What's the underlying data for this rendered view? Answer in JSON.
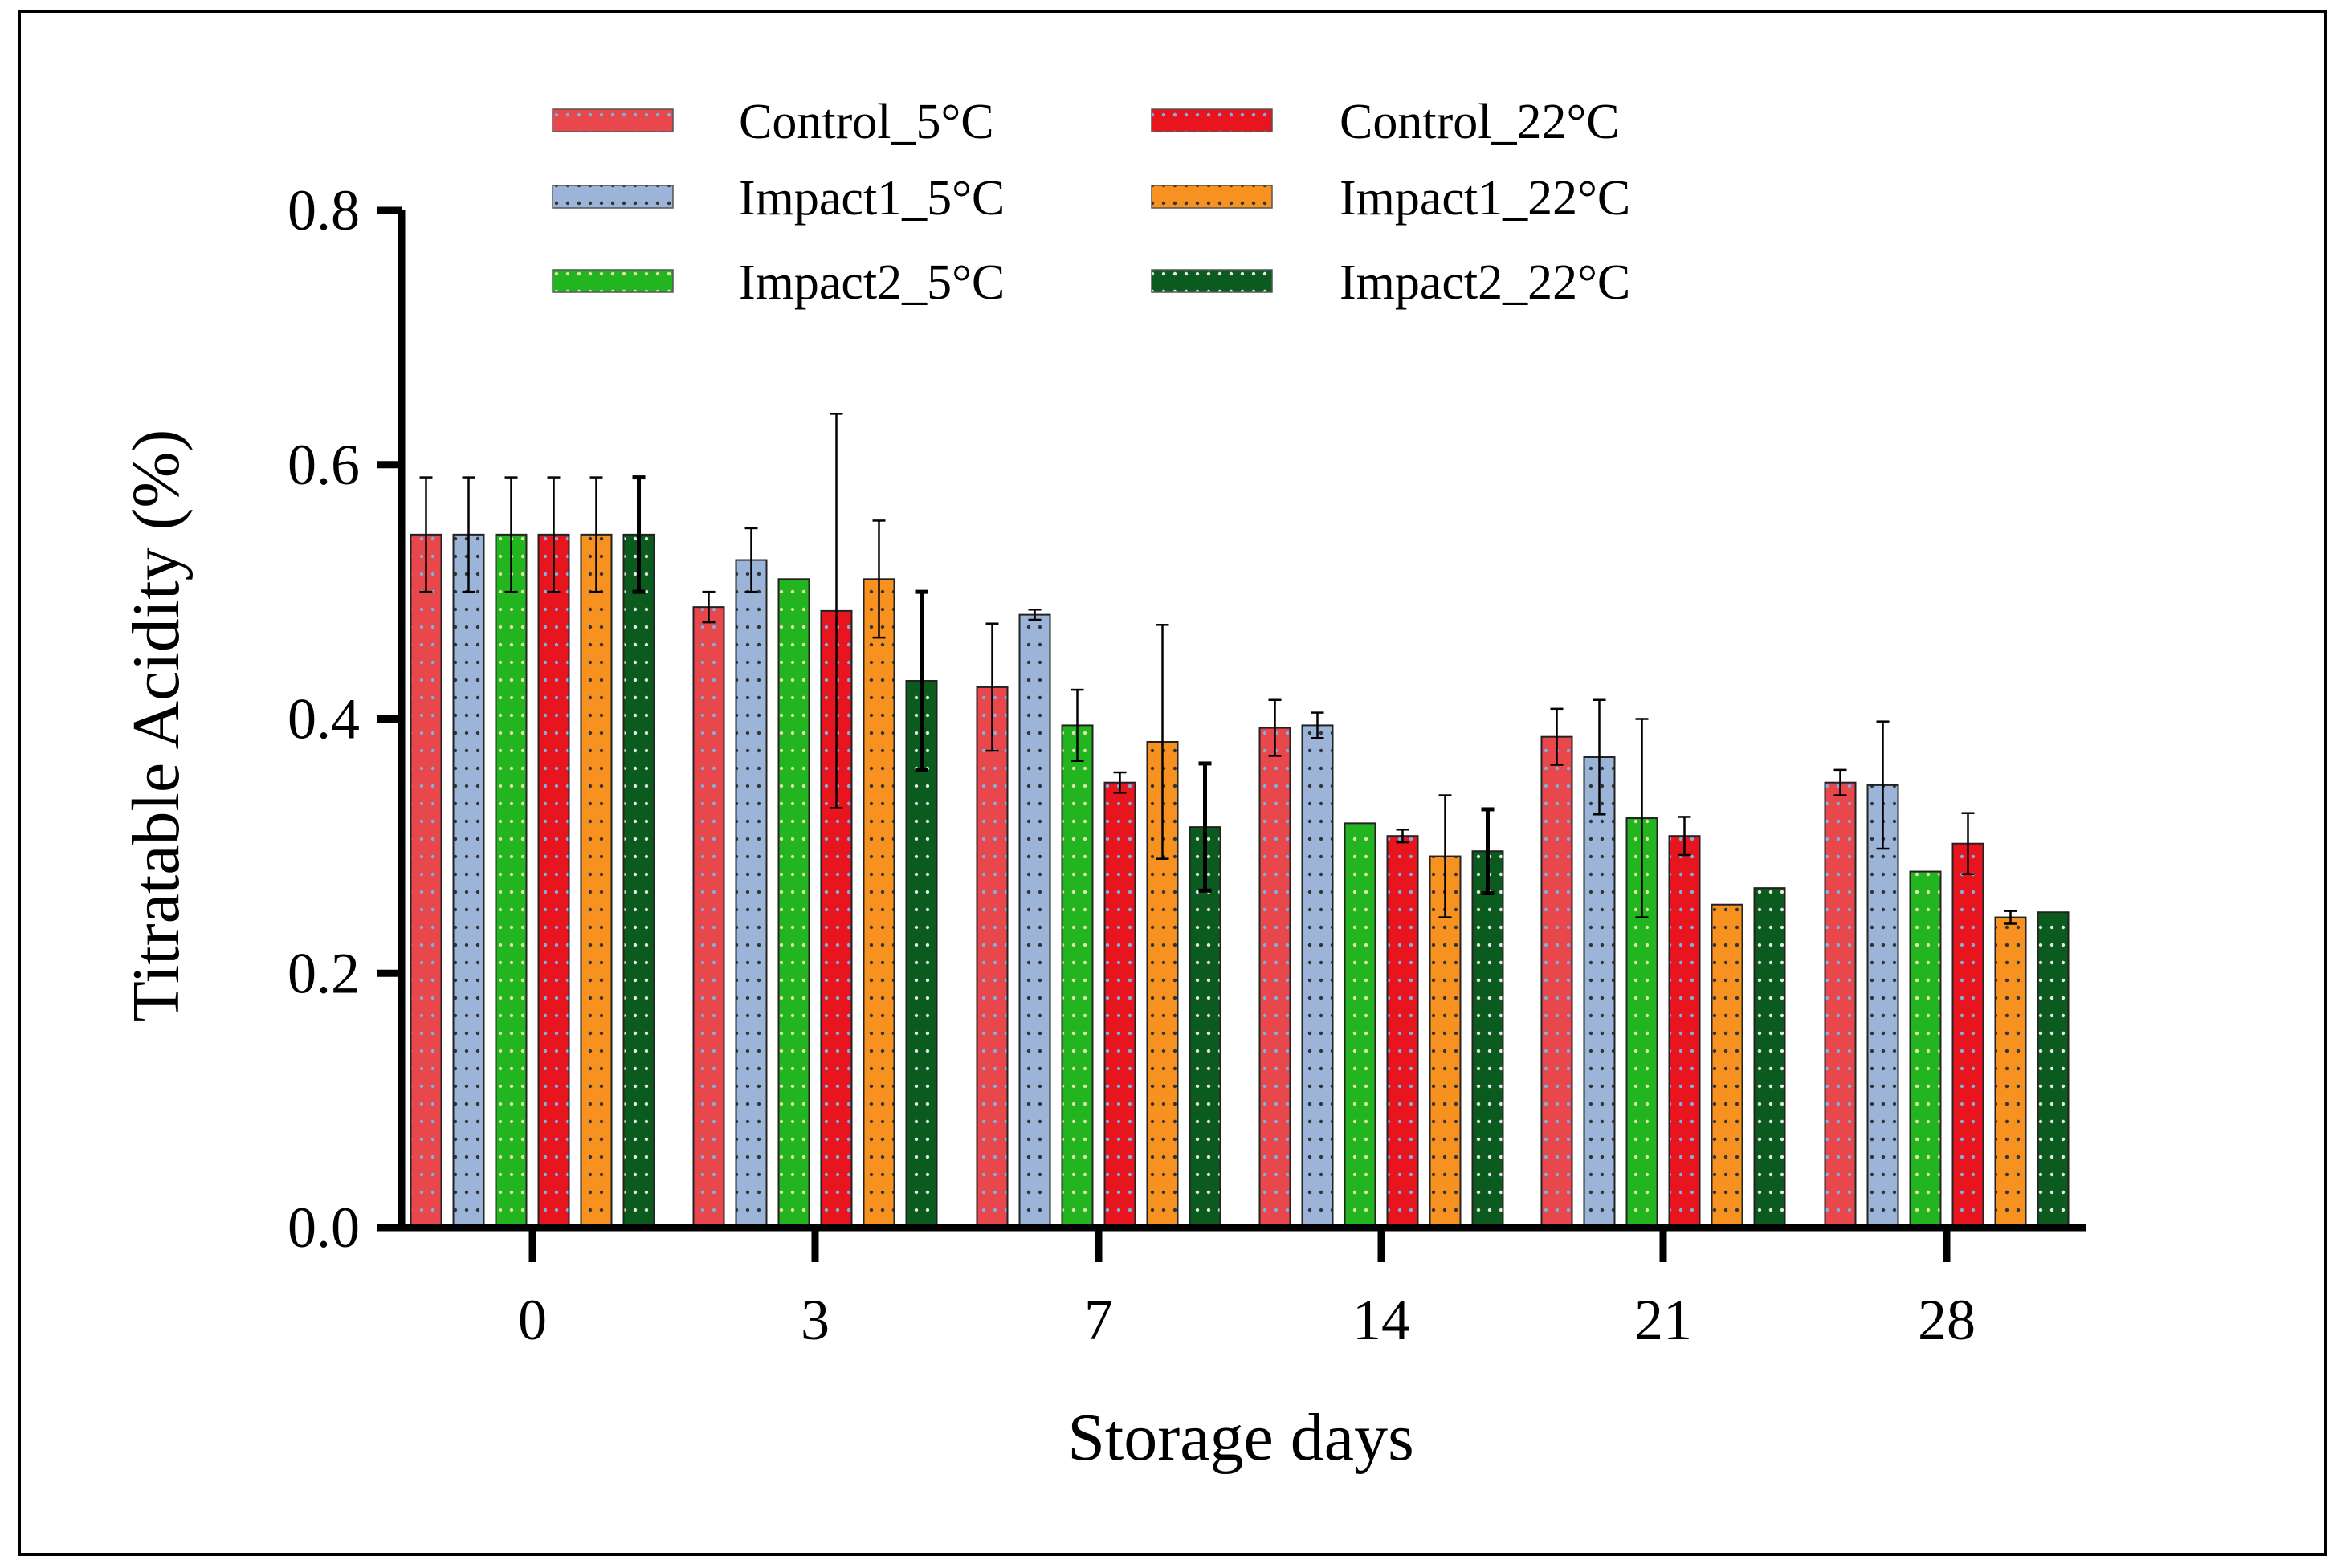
{
  "chart_data": {
    "type": "bar",
    "xlabel": "Storage days",
    "ylabel": "Titratable Acidity (%)",
    "ylim": [
      0,
      0.8
    ],
    "yticks": [
      "0.0",
      "0.2",
      "0.4",
      "0.6",
      "0.8"
    ],
    "categories": [
      "0",
      "3",
      "7",
      "14",
      "21",
      "28"
    ],
    "legend_position": "top",
    "series": [
      {
        "name": "Control_5°C",
        "color": "#e8474c",
        "dot": "#7fb0e0",
        "values": [
          0.545,
          0.488,
          0.425,
          0.393,
          0.386,
          0.35
        ],
        "errors": [
          0.045,
          0.012,
          0.05,
          0.022,
          0.022,
          0.01
        ]
      },
      {
        "name": "Impact1_5°C",
        "color": "#9bb4d8",
        "dot": "#333333",
        "values": [
          0.545,
          0.525,
          0.482,
          0.395,
          0.37,
          0.348
        ],
        "errors": [
          0.045,
          0.025,
          0.004,
          0.01,
          0.045,
          0.05
        ]
      },
      {
        "name": "Impact2_5°C",
        "color": "#22b51f",
        "dot": "#dfe7a8",
        "values": [
          0.545,
          0.51,
          0.395,
          0.318,
          0.322,
          0.28
        ],
        "errors": [
          0.045,
          0.0,
          0.028,
          0.0,
          0.078,
          0.0
        ]
      },
      {
        "name": "Control_22°C",
        "color": "#e8141e",
        "dot": "#7fb0e0",
        "values": [
          0.545,
          0.485,
          0.35,
          0.308,
          0.308,
          0.302
        ],
        "errors": [
          0.045,
          0.155,
          0.008,
          0.005,
          0.015,
          0.024
        ]
      },
      {
        "name": "Impact1_22°C",
        "color": "#f7911f",
        "dot": "#333333",
        "values": [
          0.545,
          0.51,
          0.382,
          0.292,
          0.254,
          0.244
        ],
        "errors": [
          0.045,
          0.046,
          0.092,
          0.048,
          0.0,
          0.005
        ]
      },
      {
        "name": "Impact2_22°C",
        "color": "#0b5a1e",
        "dot": "#e6e6e6",
        "values": [
          0.545,
          0.43,
          0.315,
          0.296,
          0.267,
          0.248
        ],
        "errors": [
          0.045,
          0.07,
          0.05,
          0.033,
          0.0,
          0.0
        ]
      }
    ]
  }
}
